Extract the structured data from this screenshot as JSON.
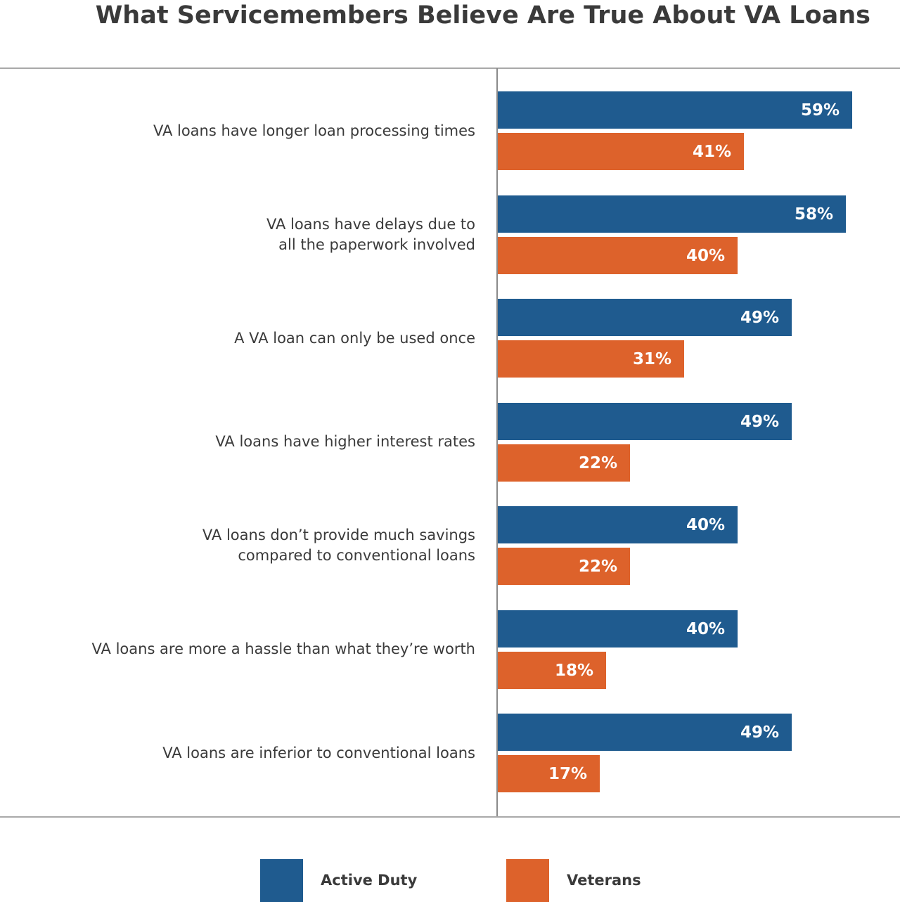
{
  "chart_data": {
    "type": "bar",
    "orientation": "horizontal",
    "title": "What Servicemembers Believe Are True About VA Loans",
    "categories": [
      [
        "VA loans have longer loan processing times"
      ],
      [
        "VA loans have delays due to",
        "all the paperwork involved"
      ],
      [
        "A VA loan can only be used once"
      ],
      [
        "VA loans have higher interest rates"
      ],
      [
        "VA loans don’t provide much savings",
        "compared to conventional loans"
      ],
      [
        "VA loans are more a hassle than what they’re worth"
      ],
      [
        "VA loans are inferior to conventional loans"
      ]
    ],
    "series": [
      {
        "name": "Active Duty",
        "color": "#1f5b8f",
        "values": [
          59,
          58,
          49,
          49,
          40,
          40,
          49
        ],
        "labels": [
          "59%",
          "58%",
          "49%",
          "49%",
          "40%",
          "40%",
          "49%"
        ]
      },
      {
        "name": "Veterans",
        "color": "#dd622b",
        "values": [
          41,
          40,
          31,
          22,
          22,
          18,
          17
        ],
        "labels": [
          "41%",
          "40%",
          "31%",
          "22%",
          "22%",
          "18%",
          "17%"
        ]
      }
    ],
    "xlim": [
      0,
      67
    ],
    "grid": false,
    "legend": "bottom"
  }
}
